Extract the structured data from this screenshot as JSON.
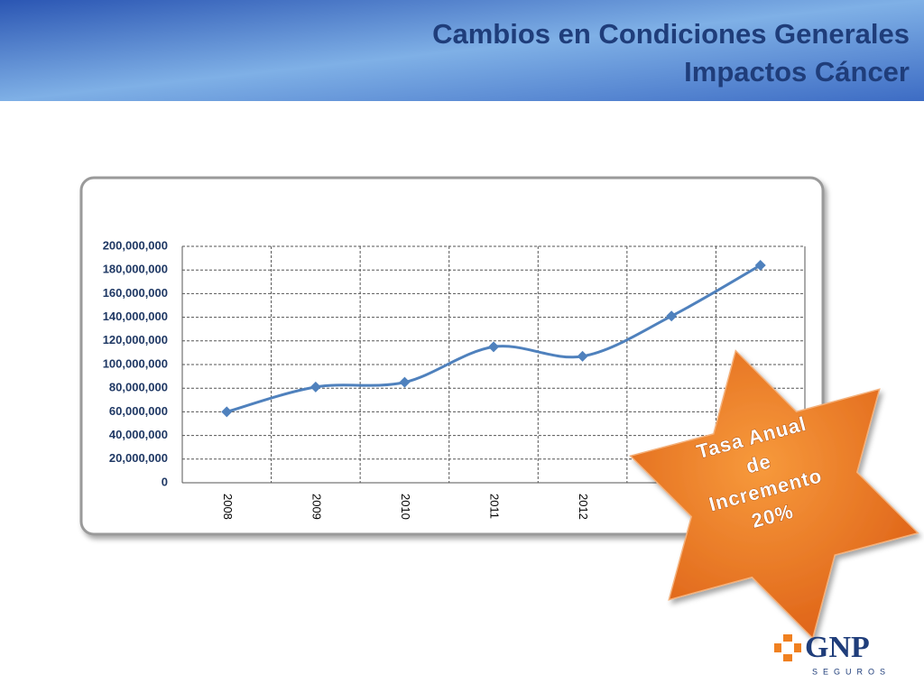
{
  "slide": {
    "title_lines": [
      "Cambios en Condiciones Generales",
      "Impactos Cáncer"
    ],
    "logo": {
      "brand": "GNP",
      "tagline": "SEGUROS"
    }
  },
  "chart_data": {
    "type": "line",
    "categories": [
      "2008",
      "2009",
      "2010",
      "2011",
      "2012",
      null,
      null
    ],
    "series": [
      {
        "name": null,
        "color": "#4f81bd",
        "values": [
          60000000,
          81000000,
          85000000,
          115000000,
          107000000,
          141000000,
          184000000
        ]
      }
    ],
    "ylim": [
      0,
      200000000
    ],
    "yticks": [
      0,
      {
        "value": 20000000,
        "label": "20,000,000"
      },
      {
        "value": 40000000,
        "label": "40,000,000"
      },
      {
        "value": 60000000,
        "label": "60,000,000"
      },
      {
        "value": 80000000,
        "label": "80,000,000"
      },
      {
        "value": 100000000,
        "label": "100,000,000"
      },
      {
        "value": 120000000,
        "label": "120,000,000"
      },
      {
        "value": 140000000,
        "label": "140,000,000"
      },
      {
        "value": 160000000,
        "label": "160,000,000"
      },
      {
        "value": 180000000,
        "label": "180,000,000"
      },
      {
        "value": 200000000,
        "label": "200,000,000"
      }
    ],
    "grid": true,
    "annotation": [
      "Tasa Anual",
      "de",
      "Incremento",
      "20%"
    ]
  }
}
